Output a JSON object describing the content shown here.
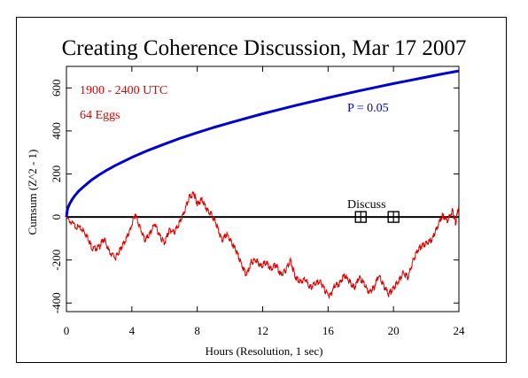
{
  "chart_data": {
    "type": "line",
    "title": "Creating Coherence Discussion, Mar 17 2007",
    "xlabel": "Hours (Resolution, 1 sec)",
    "ylabel": "Cumsum (Z^2 - 1)",
    "xlim": [
      0,
      24
    ],
    "ylim": [
      -440,
      700
    ],
    "x_ticks": [
      0,
      4,
      8,
      12,
      16,
      20,
      24
    ],
    "y_ticks": [
      -400,
      -200,
      0,
      200,
      400,
      600
    ],
    "annotations": {
      "time_range": "1900 - 2400 UTC",
      "eggs": "64 Eggs",
      "p_label": "P = 0.05",
      "event_label": "Discuss"
    },
    "markers": [
      {
        "x": 18,
        "y": 0
      },
      {
        "x": 20,
        "y": 0
      }
    ],
    "series": [
      {
        "role": "cumsum",
        "color": "#e00000",
        "x": [
          0,
          0.5,
          1,
          1.3,
          1.6,
          2,
          2.3,
          2.6,
          3,
          3.3,
          3.6,
          3.9,
          4.2,
          4.5,
          4.8,
          5.1,
          5.4,
          5.7,
          6,
          6.3,
          6.6,
          6.9,
          7.2,
          7.5,
          7.8,
          8,
          8.3,
          8.6,
          8.9,
          9.2,
          9.5,
          9.8,
          10.1,
          10.4,
          10.7,
          11,
          11.3,
          11.6,
          11.9,
          12.2,
          12.5,
          12.8,
          13.1,
          13.4,
          13.7,
          14,
          14.3,
          14.6,
          14.9,
          15.2,
          15.5,
          15.8,
          16.1,
          16.4,
          16.7,
          17,
          17.3,
          17.6,
          17.9,
          18.2,
          18.5,
          18.8,
          19.1,
          19.4,
          19.7,
          20,
          20.3,
          20.6,
          20.9,
          21.2,
          21.5,
          21.8,
          22.1,
          22.4,
          22.7,
          23,
          23.3,
          23.6,
          23.8,
          24
        ],
        "y": [
          -5,
          -40,
          -60,
          -95,
          -150,
          -140,
          -100,
          -160,
          -190,
          -150,
          -110,
          -60,
          15,
          -50,
          -110,
          -80,
          -30,
          -90,
          -120,
          -60,
          -70,
          -30,
          20,
          90,
          110,
          60,
          80,
          30,
          10,
          -40,
          -110,
          -80,
          -120,
          -160,
          -220,
          -270,
          -210,
          -200,
          -230,
          -210,
          -240,
          -220,
          -270,
          -250,
          -200,
          -280,
          -300,
          -290,
          -330,
          -310,
          -300,
          -340,
          -370,
          -320,
          -310,
          -270,
          -300,
          -330,
          -280,
          -310,
          -350,
          -330,
          -270,
          -320,
          -360,
          -330,
          -300,
          -260,
          -280,
          -200,
          -150,
          -130,
          -120,
          -100,
          -40,
          10,
          -20,
          30,
          -30,
          60
        ]
      },
      {
        "role": "P = 0.05",
        "color": "#0000cc",
        "x": [
          0,
          0.05,
          0.1,
          0.2,
          0.35,
          0.5,
          0.75,
          1,
          1.5,
          2,
          2.5,
          3,
          4,
          5,
          6,
          7,
          8,
          9,
          10,
          11,
          12,
          13,
          14,
          15,
          16,
          17,
          18,
          19,
          20,
          21,
          22,
          23,
          24
        ],
        "y": [
          0,
          31,
          44,
          62,
          82,
          98,
          120,
          138,
          170,
          196,
          219,
          240,
          277,
          310,
          339,
          367,
          392,
          416,
          438,
          459,
          480,
          499,
          518,
          536,
          554,
          571,
          588,
          604,
          620,
          635,
          650,
          665,
          679
        ]
      }
    ]
  },
  "colors": {
    "cumsum": "#e00000",
    "probability": "#0000cc",
    "axis": "#000000"
  }
}
